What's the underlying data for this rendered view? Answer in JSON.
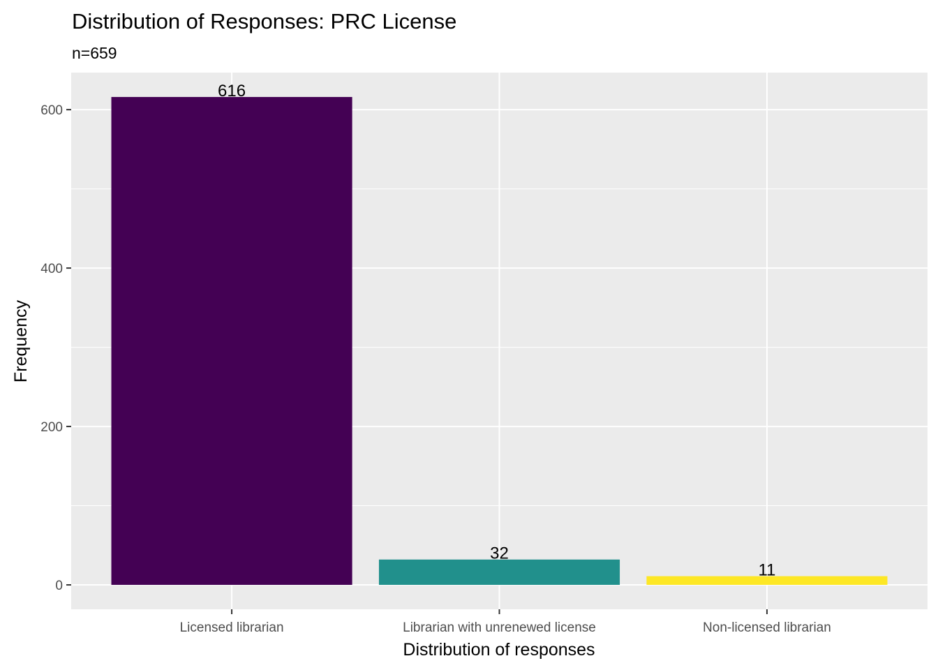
{
  "chart_data": {
    "type": "bar",
    "title": "Distribution of Responses: PRC License",
    "subtitle": "n=659",
    "xlabel": "Distribution of responses",
    "ylabel": "Frequency",
    "categories": [
      "Licensed librarian",
      "Librarian with unrenewed license",
      "Non-licensed librarian"
    ],
    "values": [
      616,
      32,
      11
    ],
    "data_labels": [
      "616",
      "32",
      "11"
    ],
    "colors": [
      "#440154",
      "#21908C",
      "#FDE725"
    ],
    "yticks": [
      0,
      200,
      400,
      600
    ],
    "ytick_labels": [
      "0",
      "200",
      "400",
      "600"
    ],
    "ylim": [
      -30.8,
      646.8
    ],
    "grid": true,
    "legend": "none",
    "panel_background": "#EBEBEB",
    "gridline_color": "#FFFFFF"
  }
}
